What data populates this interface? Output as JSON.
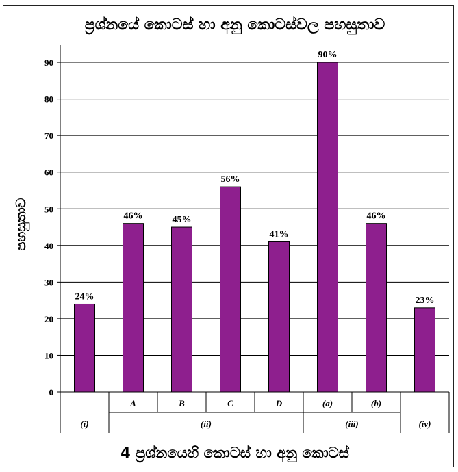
{
  "chart_data": {
    "type": "bar",
    "title": "ප්‍රශ්නයේ කොටස් හා අනු කොටස්වල පහසුතාව",
    "xlabel": "4 ප්‍රශ්නයෙහි කොටස් හා අනු කොටස්",
    "ylabel": "පහසුතාව",
    "ylim": [
      0,
      100
    ],
    "yticks": [
      0,
      10,
      20,
      30,
      40,
      50,
      60,
      70,
      80,
      90
    ],
    "grid": true,
    "legend": "none",
    "bar_color": "#8E1F8E",
    "categories": [
      {
        "sub": "",
        "group": "(i)",
        "value": 24,
        "label": "24%"
      },
      {
        "sub": "A",
        "group": "(ii)",
        "value": 46,
        "label": "46%"
      },
      {
        "sub": "B",
        "group": "(ii)",
        "value": 45,
        "label": "45%"
      },
      {
        "sub": "C",
        "group": "(ii)",
        "value": 56,
        "label": "56%"
      },
      {
        "sub": "D",
        "group": "(ii)",
        "value": 41,
        "label": "41%"
      },
      {
        "sub": "(a)",
        "group": "(iii)",
        "value": 90,
        "label": "90%"
      },
      {
        "sub": "(b)",
        "group": "(iii)",
        "value": 46,
        "label": "46%"
      },
      {
        "sub": "",
        "group": "(iv)",
        "value": 23,
        "label": "23%"
      }
    ],
    "groups": [
      "(i)",
      "(ii)",
      "(iii)",
      "(iv)"
    ]
  }
}
